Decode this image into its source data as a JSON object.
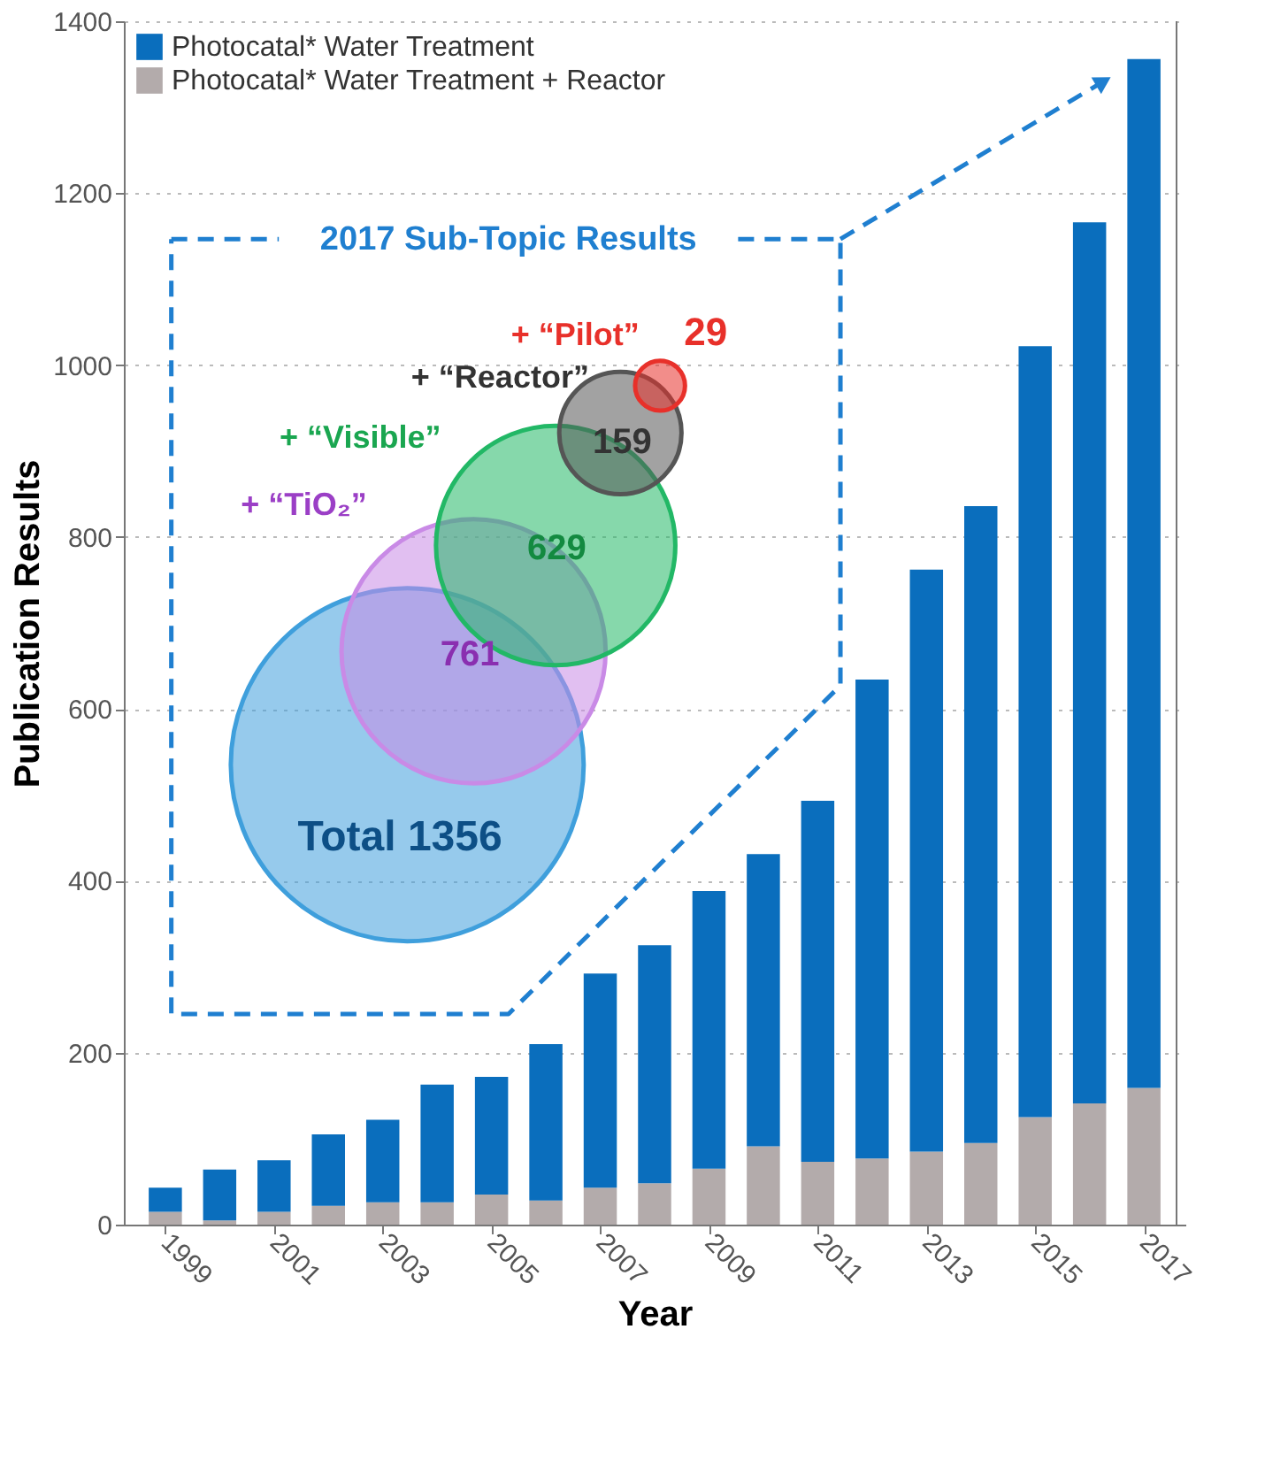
{
  "chart_data": {
    "type": "bar",
    "stacked": true,
    "xlabel": "Year",
    "ylabel": "Publication Results",
    "x": [
      1999,
      2000,
      2001,
      2002,
      2003,
      2004,
      2005,
      2006,
      2007,
      2008,
      2009,
      2010,
      2011,
      2012,
      2013,
      2014,
      2015,
      2016,
      2017
    ],
    "xlim": [
      1998.4,
      2017.6
    ],
    "xticks": [
      1999,
      2001,
      2003,
      2005,
      2007,
      2009,
      2011,
      2013,
      2015,
      2017
    ],
    "ylim": [
      0,
      1400
    ],
    "yticks": [
      0,
      200,
      400,
      600,
      800,
      1000,
      1200,
      1400
    ],
    "grid": "y",
    "legend": "top left",
    "series": [
      {
        "name": "Photocatal* Water Treatment + Reactor",
        "color": "#b3abab",
        "values": [
          15,
          5,
          15,
          22,
          26,
          26,
          35,
          28,
          43,
          48,
          65,
          91,
          73,
          77,
          85,
          95,
          125,
          141,
          159
        ]
      },
      {
        "name": "Photocatal* Water Treatment",
        "color": "#0a6ebd",
        "values": [
          28,
          59,
          60,
          83,
          96,
          137,
          137,
          182,
          249,
          277,
          323,
          340,
          420,
          557,
          677,
          741,
          897,
          1025,
          1197
        ]
      },
      {
        "type": "bubble",
        "x": [
          2003.45,
          2004.67,
          2006.18,
          2007.37,
          2008.1
        ],
        "values": [
          535,
          667,
          790,
          921,
          976
        ],
        "sizes": [
          1,
          0.56,
          0.46,
          0.12,
          0.02
        ],
        "colors": [
          "#3f9fdc",
          "#c98ae6",
          "#22b866",
          "#555555",
          "#e8302a"
        ]
      }
    ],
    "annotations": [
      "2017 Sub-Topic Results",
      "+ “Pilot”",
      "29",
      "+ “Reactor”",
      "159",
      "+ “Visible”",
      {
        "text": "629",
        "x": 2006.2,
        "y": 786
      },
      "+ “TiO₂”",
      {
        "text": "761",
        "x": 2004.6,
        "y": 663
      },
      "Total 1356"
    ]
  }
}
